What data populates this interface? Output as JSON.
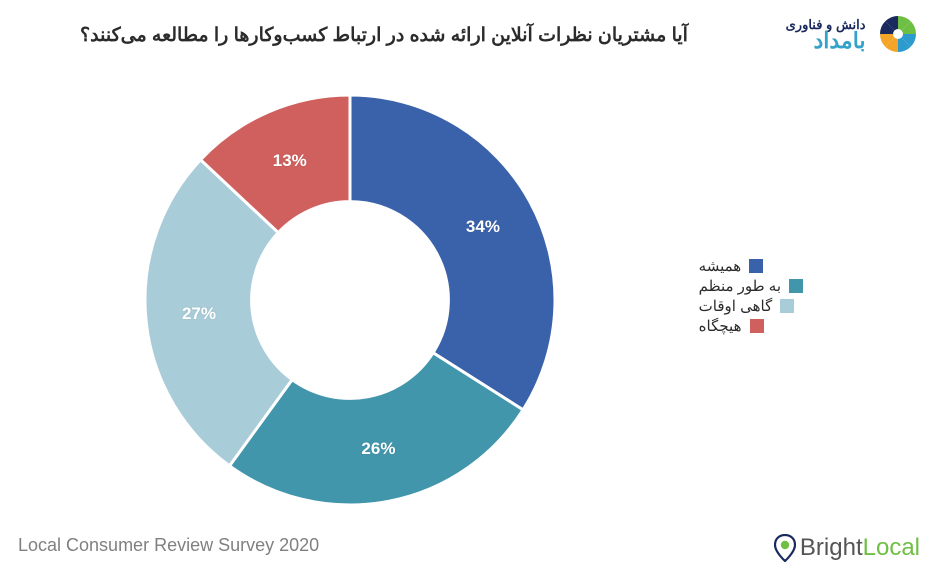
{
  "title": {
    "text": "آیا مشتریان نظرات آنلاین ارائه شده در ارتباط کسب‌وکارها را مطالعه می‌کنند؟",
    "fontsize": 19,
    "color": "#2b2b2b",
    "weight": "bold"
  },
  "top_logo": {
    "line1": "دانش و فناوری",
    "line2": "بامداد",
    "petal_colors": [
      "#6fbf44",
      "#6fbf44",
      "#2e9bcf",
      "#2e9bcf",
      "#f4a428",
      "#f4a428",
      "#1b2a5e",
      "#1b2a5e"
    ]
  },
  "donut_chart": {
    "type": "pie",
    "inner_radius_ratio": 0.48,
    "outer_radius": 205,
    "background_color": "#ffffff",
    "label_fontsize": 17,
    "label_color": "#ffffff",
    "slice_gap_color": "#ffffff",
    "slice_gap_width": 3,
    "start_angle_deg": -90,
    "slices": [
      {
        "label": "همیشه",
        "value": 34,
        "display": "34%",
        "color": "#3a62ab"
      },
      {
        "label": "به طور منظم",
        "value": 26,
        "display": "26%",
        "color": "#4296ac"
      },
      {
        "label": "گاهی اوقات",
        "value": 27,
        "display": "27%",
        "color": "#a9ccd9"
      },
      {
        "label": "هیچگاه",
        "value": 13,
        "display": "13%",
        "color": "#d0605e"
      }
    ]
  },
  "legend": {
    "fontsize": 15,
    "text_color": "#2b2b2b",
    "swatch_size": 14,
    "items": [
      {
        "label": "همیشه",
        "color": "#3a62ab"
      },
      {
        "label": "به طور منظم",
        "color": "#4296ac"
      },
      {
        "label": "گاهی اوقات",
        "color": "#a9ccd9"
      },
      {
        "label": "هیچگاه",
        "color": "#d0605e"
      }
    ]
  },
  "footer": {
    "left_text": "Local Consumer Review Survey 2020",
    "left_color": "#808080",
    "left_fontsize": 18,
    "right_brand_dark": "Bright",
    "right_brand_accent": "Local",
    "right_accent_color": "#6fbf44",
    "right_dark_color": "#555555",
    "right_fontsize": 24,
    "pin_outer": "#1b2a5e",
    "pin_inner": "#6fbf44"
  }
}
